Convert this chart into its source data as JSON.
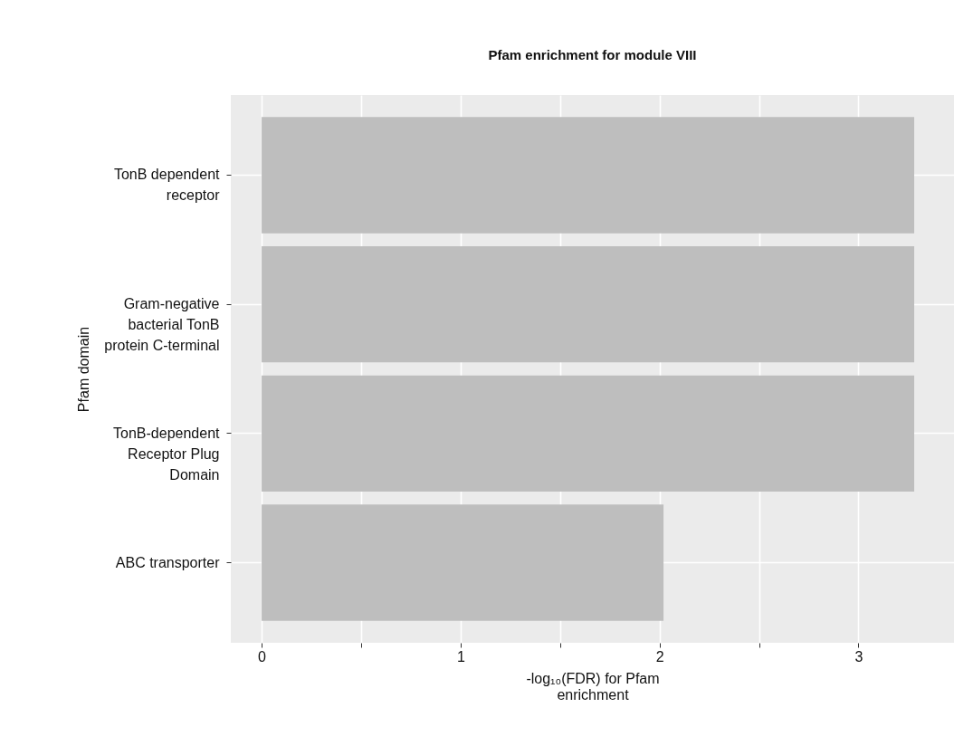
{
  "chart_data": {
    "type": "bar",
    "orientation": "horizontal",
    "title": "Pfam enrichment for module VIII",
    "xlabel": "-log₁₀(FDR) for Pfam\nenrichment",
    "ylabel": "Pfam domain",
    "categories": [
      "TonB dependent\nreceptor",
      "Gram-negative\nbacterial TonB\nprotein C-terminal",
      "TonB-dependent\nReceptor Plug\nDomain",
      "ABC transporter"
    ],
    "values": [
      3.28,
      3.28,
      3.28,
      2.02
    ],
    "color": "#bebebe",
    "xlim": [
      -0.155,
      3.48
    ],
    "xticks": [
      0,
      {
        "value": 0.5,
        "label": null
      },
      1,
      {
        "value": 1.5,
        "label": null
      },
      2,
      {
        "value": 2.5,
        "label": null
      },
      3
    ],
    "grid": true
  }
}
